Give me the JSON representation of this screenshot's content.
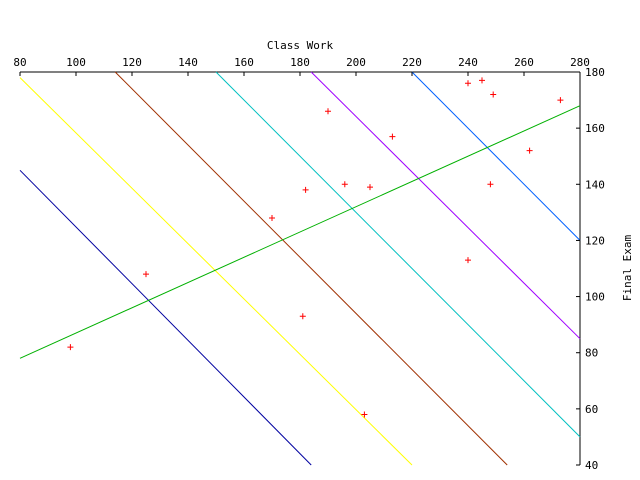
{
  "chart_data": {
    "type": "scatter",
    "xlabel": "Class Work",
    "ylabel": "Final Exam",
    "xlim": [
      80,
      280
    ],
    "ylim": [
      40,
      180
    ],
    "x_ticks": [
      80,
      100,
      120,
      140,
      160,
      180,
      200,
      220,
      240,
      260,
      280
    ],
    "y_ticks": [
      40,
      60,
      80,
      100,
      120,
      140,
      160,
      180
    ],
    "grid": false,
    "points": {
      "color": "#ff0000",
      "marker": "plus",
      "x": [
        98,
        125,
        170,
        181,
        182,
        190,
        196,
        205,
        203,
        213,
        240,
        240,
        245,
        248,
        249,
        262,
        273
      ],
      "y": [
        82,
        108,
        128,
        93,
        138,
        166,
        140,
        139,
        58,
        157,
        176,
        113,
        177,
        140,
        172,
        152,
        170
      ]
    },
    "lines": [
      {
        "color": "#0000a0",
        "x": [
          80,
          184
        ],
        "y": [
          145,
          40
        ]
      },
      {
        "color": "#ffff00",
        "x": [
          80,
          220
        ],
        "y": [
          178,
          40
        ]
      },
      {
        "color": "#a03000",
        "x": [
          114,
          254
        ],
        "y": [
          180,
          40
        ]
      },
      {
        "color": "#00c0c0",
        "x": [
          150,
          280
        ],
        "y": [
          180,
          50
        ]
      },
      {
        "color": "#a000ff",
        "x": [
          184,
          280
        ],
        "y": [
          180,
          85
        ]
      },
      {
        "color": "#0060ff",
        "x": [
          220,
          280
        ],
        "y": [
          180,
          120
        ]
      },
      {
        "color": "#00b000",
        "x": [
          80,
          280
        ],
        "y": [
          78,
          168
        ]
      }
    ]
  }
}
